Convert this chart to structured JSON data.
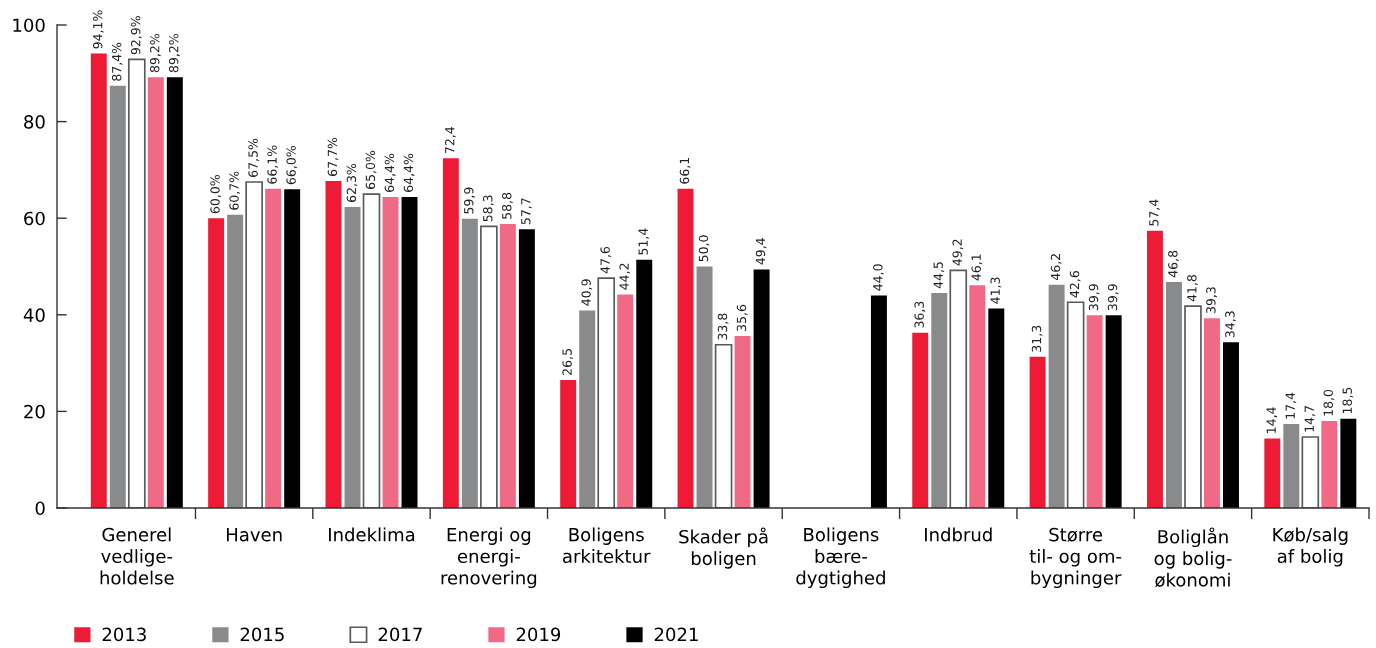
{
  "chart_data": {
    "type": "bar",
    "categories": [
      "Generel\nvedlige-\nholdelse",
      "Haven",
      "Indeklima",
      "Energi og\nenergi-\nrenovering",
      "Boligens\narkitektur",
      "Skader på\nboligen",
      "Boligens\nbære-\ndygtighed",
      "Indbrud",
      "Større\ntil- og om-\nbygninger",
      "Boliglån\nog bolig-\nøkonomi",
      "Køb/salg\naf bolig"
    ],
    "series": [
      {
        "name": "2013",
        "color": "#ed1b35",
        "values": [
          94.1,
          60.0,
          67.7,
          72.4,
          26.5,
          66.1,
          null,
          36.3,
          31.3,
          57.4,
          14.4
        ],
        "value_labels": [
          "94,1%",
          "60,0%",
          "67,7%",
          "72,4",
          "26,5",
          "66,1",
          null,
          "36,3",
          "31,3",
          "57,4",
          "14,4"
        ]
      },
      {
        "name": "2015",
        "color": "#898a8c",
        "values": [
          87.4,
          60.7,
          62.3,
          59.9,
          40.9,
          50.0,
          null,
          44.5,
          46.2,
          46.8,
          17.4
        ],
        "value_labels": [
          "87,4%",
          "60,7%",
          "62,3%",
          "59,9",
          "40,9",
          "50,0",
          null,
          "44,5",
          "46,2",
          "46,8",
          "17,4"
        ]
      },
      {
        "name": "2017",
        "color": "#ffffff",
        "values": [
          92.9,
          67.5,
          65.0,
          58.3,
          47.6,
          33.8,
          null,
          49.2,
          42.6,
          41.8,
          14.7
        ],
        "value_labels": [
          "92,9%",
          "67,5%",
          "65,0%",
          "58,3",
          "47,6",
          "33,8",
          null,
          "49,2",
          "42,6",
          "41,8",
          "14,7"
        ]
      },
      {
        "name": "2019",
        "color": "#f06a86",
        "values": [
          89.2,
          66.1,
          64.4,
          58.8,
          44.2,
          35.6,
          null,
          46.1,
          39.9,
          39.3,
          18.0
        ],
        "value_labels": [
          "89,2%",
          "66,1%",
          "64,4%",
          "58,8",
          "44,2",
          "35,6",
          null,
          "46,1",
          "39,9",
          "39,3",
          "18,0"
        ]
      },
      {
        "name": "2021",
        "color": "#000000",
        "values": [
          89.2,
          66.0,
          64.4,
          57.7,
          51.4,
          49.4,
          44.0,
          41.3,
          39.9,
          34.3,
          18.5
        ],
        "value_labels": [
          "89,2%",
          "66,0%",
          "64,4%",
          "57,7",
          "51,4",
          "49,4",
          "44,0",
          "41,3",
          "39,9",
          "34,3",
          "18,5"
        ]
      }
    ],
    "ylim": [
      0,
      100
    ],
    "yticks": [
      0,
      20,
      40,
      60,
      80,
      100
    ],
    "grid": false,
    "legend": "bottom"
  }
}
